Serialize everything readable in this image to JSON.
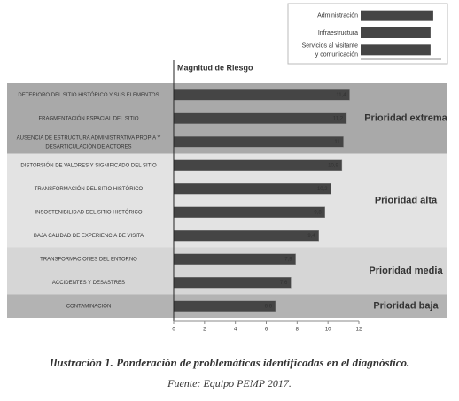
{
  "chart_data": [
    {
      "type": "bar",
      "orientation": "horizontal",
      "title": "Magnitud de Riesgo",
      "xlim": [
        0,
        12
      ],
      "xticks": [
        0,
        2,
        4,
        6,
        8,
        10,
        12
      ],
      "color": "#454545",
      "groups": [
        {
          "name": "Prioridad extrema",
          "band_color": "#a9a9a9",
          "categories": [
            "DETERIORO DEL SITIO HISTÓRICO Y SUS ELEMENTOS",
            "FRAGMENTACIÓN ESPACIAL DEL SITIO",
            "AUSENCIA DE ESTRUCTURA ADMINISTRATIVA PROPIA Y DESARTICULACIÓN DE ACTORES"
          ],
          "values": [
            11.4,
            11.2,
            11
          ],
          "value_labels": [
            "11,4",
            "11,2",
            "11"
          ]
        },
        {
          "name": "Prioridad alta",
          "band_color": "#e3e3e3",
          "categories": [
            "DISTORSIÓN DE VALORES Y SIGNIFICADO DEL SITIO",
            "TRANSFORMACIÓN DEL SITIO HISTÓRICO",
            "INSOSTENIBILIDAD DEL SITIO HISTÓRICO",
            "BAJA CALIDAD DE EXPERIENCIA DE VISITA"
          ],
          "values": [
            10.9,
            10.2,
            9.8,
            9.4
          ],
          "value_labels": [
            "10,9",
            "10,2",
            "9,8",
            "9,4"
          ]
        },
        {
          "name": "Prioridad media",
          "band_color": "#d6d6d6",
          "categories": [
            "TRANSFORMACIONES DEL ENTORNO",
            "ACCIDENTES Y DESASTRES"
          ],
          "values": [
            7.9,
            7.6
          ],
          "value_labels": [
            "7,9",
            "7,6"
          ]
        },
        {
          "name": "Prioridad baja",
          "band_color": "#b3b3b3",
          "categories": [
            "CONTAMINACIÓN"
          ],
          "values": [
            6.6
          ],
          "value_labels": [
            "6,6"
          ]
        }
      ]
    },
    {
      "type": "bar",
      "orientation": "horizontal",
      "color": "#454545",
      "xlim": [
        0,
        3
      ],
      "categories": [
        "Administración",
        "Infraestructura",
        "Servicios al visitante y comunicación"
      ],
      "values": [
        2.7,
        2.6,
        2.6
      ]
    }
  ],
  "caption": {
    "title": "Ilustración 1. Ponderación de problemáticas identificadas en el diagnóstico.",
    "source": "Fuente: Equipo PEMP 2017."
  }
}
